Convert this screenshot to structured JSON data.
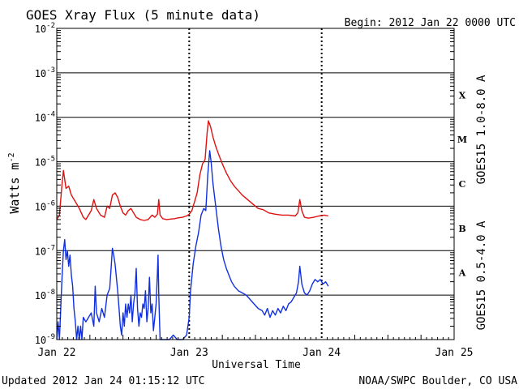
{
  "header": {
    "title": "GOES Xray Flux (5 minute data)",
    "begin": "Begin:  2012 Jan 22 0000 UTC"
  },
  "footer": {
    "updated": "Updated 2012 Jan 24 01:15:12 UTC",
    "credit": "NOAA/SWPC Boulder, CO USA"
  },
  "colors": {
    "long": "#e01010",
    "short": "#1030e0",
    "grid": "#000000"
  },
  "chart_data": {
    "type": "line",
    "title": "GOES Xray Flux (5 minute data)",
    "xlabel": "Universal Time",
    "ylabel_text": "Watts m",
    "ylabel_sup": "-2",
    "xlim_days": [
      0,
      3
    ],
    "x_unit": "days since 2012 Jan 22 0000 UTC",
    "x_ticks": [
      {
        "day": 0,
        "label": "Jan 22"
      },
      {
        "day": 1,
        "label": "Jan 23"
      },
      {
        "day": 2,
        "label": "Jan 24"
      },
      {
        "day": 3,
        "label": "Jan 25"
      }
    ],
    "y_scale": "log",
    "ylim": [
      1e-09,
      0.01
    ],
    "y_ticks": [
      {
        "exp": -9,
        "base": "10",
        "sup": "-9"
      },
      {
        "exp": -8,
        "base": "10",
        "sup": "-8"
      },
      {
        "exp": -7,
        "base": "10",
        "sup": "-7"
      },
      {
        "exp": -6,
        "base": "10",
        "sup": "-6"
      },
      {
        "exp": -5,
        "base": "10",
        "sup": "-5"
      },
      {
        "exp": -4,
        "base": "10",
        "sup": "-4"
      },
      {
        "exp": -3,
        "base": "10",
        "sup": "-3"
      },
      {
        "exp": -2,
        "base": "10",
        "sup": "-2"
      }
    ],
    "class_labels": [
      {
        "label": "A",
        "exp": -7.5
      },
      {
        "label": "B",
        "exp": -6.5
      },
      {
        "label": "C",
        "exp": -5.5
      },
      {
        "label": "M",
        "exp": -4.5
      },
      {
        "label": "X",
        "exp": -3.5
      }
    ],
    "series": [
      {
        "name": "GOES15 1.0-8.0 A",
        "color": "#e01010",
        "points": [
          [
            0.0,
            -6.3
          ],
          [
            0.02,
            -6.2
          ],
          [
            0.04,
            -5.5
          ],
          [
            0.05,
            -5.2
          ],
          [
            0.07,
            -5.6
          ],
          [
            0.09,
            -5.55
          ],
          [
            0.11,
            -5.75
          ],
          [
            0.14,
            -5.9
          ],
          [
            0.17,
            -6.05
          ],
          [
            0.2,
            -6.25
          ],
          [
            0.22,
            -6.3
          ],
          [
            0.24,
            -6.2
          ],
          [
            0.26,
            -6.1
          ],
          [
            0.28,
            -5.85
          ],
          [
            0.3,
            -6.05
          ],
          [
            0.33,
            -6.2
          ],
          [
            0.36,
            -6.25
          ],
          [
            0.38,
            -6.0
          ],
          [
            0.4,
            -6.05
          ],
          [
            0.42,
            -5.75
          ],
          [
            0.44,
            -5.7
          ],
          [
            0.46,
            -5.8
          ],
          [
            0.48,
            -6.0
          ],
          [
            0.5,
            -6.15
          ],
          [
            0.52,
            -6.2
          ],
          [
            0.54,
            -6.1
          ],
          [
            0.56,
            -6.05
          ],
          [
            0.58,
            -6.15
          ],
          [
            0.6,
            -6.25
          ],
          [
            0.63,
            -6.3
          ],
          [
            0.66,
            -6.32
          ],
          [
            0.69,
            -6.3
          ],
          [
            0.72,
            -6.2
          ],
          [
            0.74,
            -6.25
          ],
          [
            0.76,
            -6.18
          ],
          [
            0.77,
            -5.85
          ],
          [
            0.78,
            -6.2
          ],
          [
            0.8,
            -6.28
          ],
          [
            0.83,
            -6.3
          ],
          [
            0.86,
            -6.29
          ],
          [
            0.89,
            -6.28
          ],
          [
            0.92,
            -6.26
          ],
          [
            0.95,
            -6.25
          ],
          [
            0.98,
            -6.22
          ],
          [
            1.0,
            -6.18
          ],
          [
            1.02,
            -6.1
          ],
          [
            1.04,
            -5.9
          ],
          [
            1.06,
            -5.7
          ],
          [
            1.08,
            -5.3
          ],
          [
            1.1,
            -5.05
          ],
          [
            1.12,
            -4.95
          ],
          [
            1.135,
            -4.35
          ],
          [
            1.145,
            -4.08
          ],
          [
            1.16,
            -4.2
          ],
          [
            1.18,
            -4.45
          ],
          [
            1.2,
            -4.65
          ],
          [
            1.22,
            -4.82
          ],
          [
            1.25,
            -5.05
          ],
          [
            1.28,
            -5.25
          ],
          [
            1.31,
            -5.42
          ],
          [
            1.34,
            -5.55
          ],
          [
            1.37,
            -5.65
          ],
          [
            1.4,
            -5.75
          ],
          [
            1.44,
            -5.85
          ],
          [
            1.48,
            -5.95
          ],
          [
            1.52,
            -6.05
          ],
          [
            1.56,
            -6.08
          ],
          [
            1.6,
            -6.15
          ],
          [
            1.65,
            -6.18
          ],
          [
            1.7,
            -6.2
          ],
          [
            1.75,
            -6.2
          ],
          [
            1.8,
            -6.22
          ],
          [
            1.82,
            -6.15
          ],
          [
            1.835,
            -5.85
          ],
          [
            1.85,
            -6.1
          ],
          [
            1.87,
            -6.25
          ],
          [
            1.9,
            -6.27
          ],
          [
            1.94,
            -6.25
          ],
          [
            1.98,
            -6.22
          ],
          [
            2.02,
            -6.2
          ],
          [
            2.05,
            -6.22
          ]
        ]
      },
      {
        "name": "GOES15 0.5-4.0 A",
        "color": "#1030e0",
        "points": [
          [
            0.0,
            -9.0
          ],
          [
            0.01,
            -8.6
          ],
          [
            0.02,
            -9.0
          ],
          [
            0.03,
            -8.3
          ],
          [
            0.04,
            -7.6
          ],
          [
            0.05,
            -7.0
          ],
          [
            0.06,
            -6.75
          ],
          [
            0.07,
            -7.2
          ],
          [
            0.08,
            -7.0
          ],
          [
            0.09,
            -7.35
          ],
          [
            0.1,
            -7.1
          ],
          [
            0.11,
            -7.55
          ],
          [
            0.12,
            -7.8
          ],
          [
            0.13,
            -8.3
          ],
          [
            0.14,
            -8.6
          ],
          [
            0.15,
            -9.0
          ],
          [
            0.16,
            -8.7
          ],
          [
            0.17,
            -9.0
          ],
          [
            0.18,
            -8.7
          ],
          [
            0.19,
            -9.0
          ],
          [
            0.2,
            -8.5
          ],
          [
            0.22,
            -8.6
          ],
          [
            0.24,
            -8.5
          ],
          [
            0.26,
            -8.4
          ],
          [
            0.28,
            -8.7
          ],
          [
            0.29,
            -7.8
          ],
          [
            0.3,
            -8.4
          ],
          [
            0.32,
            -8.6
          ],
          [
            0.34,
            -8.3
          ],
          [
            0.36,
            -8.5
          ],
          [
            0.38,
            -8.0
          ],
          [
            0.4,
            -7.85
          ],
          [
            0.41,
            -7.4
          ],
          [
            0.42,
            -6.95
          ],
          [
            0.43,
            -7.1
          ],
          [
            0.44,
            -7.3
          ],
          [
            0.45,
            -7.6
          ],
          [
            0.46,
            -7.9
          ],
          [
            0.47,
            -8.3
          ],
          [
            0.48,
            -8.7
          ],
          [
            0.49,
            -8.9
          ],
          [
            0.5,
            -8.4
          ],
          [
            0.51,
            -8.7
          ],
          [
            0.52,
            -8.2
          ],
          [
            0.53,
            -8.5
          ],
          [
            0.54,
            -8.2
          ],
          [
            0.55,
            -8.4
          ],
          [
            0.56,
            -8.0
          ],
          [
            0.57,
            -8.6
          ],
          [
            0.58,
            -8.2
          ],
          [
            0.59,
            -7.95
          ],
          [
            0.6,
            -7.4
          ],
          [
            0.61,
            -8.3
          ],
          [
            0.62,
            -8.7
          ],
          [
            0.63,
            -8.4
          ],
          [
            0.64,
            -8.5
          ],
          [
            0.65,
            -8.2
          ],
          [
            0.66,
            -8.3
          ],
          [
            0.67,
            -7.9
          ],
          [
            0.68,
            -8.6
          ],
          [
            0.69,
            -8.3
          ],
          [
            0.7,
            -7.6
          ],
          [
            0.71,
            -8.4
          ],
          [
            0.72,
            -8.2
          ],
          [
            0.73,
            -8.8
          ],
          [
            0.74,
            -8.5
          ],
          [
            0.75,
            -8.2
          ],
          [
            0.76,
            -7.5
          ],
          [
            0.765,
            -7.1
          ],
          [
            0.77,
            -8.0
          ],
          [
            0.78,
            -9.0
          ],
          [
            0.8,
            -9.0
          ],
          [
            0.82,
            -9.0
          ],
          [
            0.85,
            -9.0
          ],
          [
            0.88,
            -8.9
          ],
          [
            0.91,
            -9.0
          ],
          [
            0.95,
            -9.0
          ],
          [
            0.98,
            -8.9
          ],
          [
            1.0,
            -8.5
          ],
          [
            1.01,
            -7.9
          ],
          [
            1.03,
            -7.3
          ],
          [
            1.05,
            -6.9
          ],
          [
            1.07,
            -6.6
          ],
          [
            1.09,
            -6.2
          ],
          [
            1.11,
            -6.05
          ],
          [
            1.125,
            -6.1
          ],
          [
            1.14,
            -5.3
          ],
          [
            1.155,
            -4.75
          ],
          [
            1.165,
            -5.0
          ],
          [
            1.18,
            -5.5
          ],
          [
            1.2,
            -6.0
          ],
          [
            1.22,
            -6.5
          ],
          [
            1.24,
            -6.9
          ],
          [
            1.26,
            -7.2
          ],
          [
            1.28,
            -7.4
          ],
          [
            1.3,
            -7.55
          ],
          [
            1.32,
            -7.7
          ],
          [
            1.34,
            -7.8
          ],
          [
            1.37,
            -7.9
          ],
          [
            1.4,
            -7.95
          ],
          [
            1.43,
            -8.0
          ],
          [
            1.46,
            -8.1
          ],
          [
            1.49,
            -8.2
          ],
          [
            1.52,
            -8.3
          ],
          [
            1.55,
            -8.35
          ],
          [
            1.57,
            -8.45
          ],
          [
            1.59,
            -8.3
          ],
          [
            1.61,
            -8.5
          ],
          [
            1.63,
            -8.35
          ],
          [
            1.65,
            -8.45
          ],
          [
            1.67,
            -8.3
          ],
          [
            1.69,
            -8.4
          ],
          [
            1.71,
            -8.25
          ],
          [
            1.73,
            -8.35
          ],
          [
            1.75,
            -8.2
          ],
          [
            1.77,
            -8.15
          ],
          [
            1.79,
            -8.05
          ],
          [
            1.81,
            -7.95
          ],
          [
            1.825,
            -7.7
          ],
          [
            1.835,
            -7.35
          ],
          [
            1.85,
            -7.75
          ],
          [
            1.87,
            -7.95
          ],
          [
            1.89,
            -8.0
          ],
          [
            1.91,
            -7.9
          ],
          [
            1.93,
            -7.75
          ],
          [
            1.95,
            -7.65
          ],
          [
            1.97,
            -7.7
          ],
          [
            1.99,
            -7.65
          ],
          [
            2.01,
            -7.75
          ],
          [
            2.03,
            -7.7
          ],
          [
            2.05,
            -7.8
          ]
        ]
      }
    ]
  }
}
